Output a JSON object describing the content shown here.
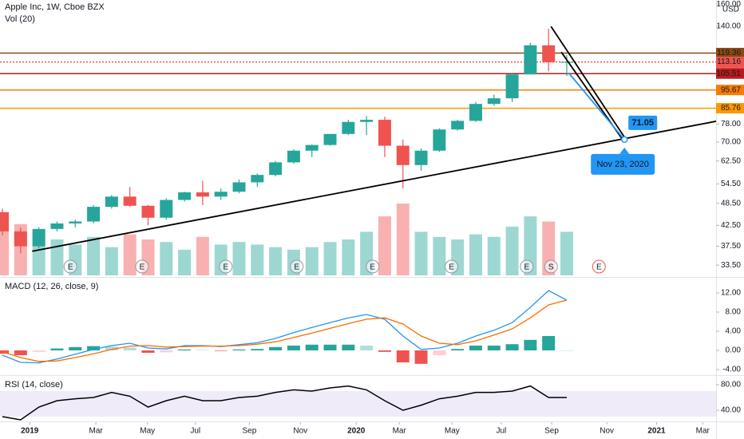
{
  "chart_data": [
    {
      "type": "candlestick",
      "title": "Apple Inc, 1W, Cboe BZX",
      "subtitle": "Vol (20)",
      "currency": "USD",
      "log_scale": true,
      "grid": false,
      "xlim": [
        -0.4,
        117.6
      ],
      "x": [
        0,
        3,
        6,
        9,
        12,
        15,
        18,
        21,
        24,
        27,
        30,
        33,
        36,
        39,
        42,
        45,
        48,
        51,
        54,
        57,
        60,
        63,
        66,
        69,
        72,
        75,
        78,
        81,
        84,
        87,
        90,
        93
      ],
      "open": [
        46,
        41,
        37.5,
        41.6,
        43,
        43.5,
        47.5,
        50.5,
        47.8,
        44.5,
        49.5,
        51.8,
        50.5,
        52,
        55,
        57.5,
        62,
        66.5,
        68.8,
        73.5,
        79,
        80,
        68.5,
        61,
        66.5,
        75.5,
        79.5,
        88,
        91,
        105,
        125,
        113
      ],
      "high": [
        47,
        42,
        42,
        43.5,
        44,
        48,
        51,
        53.5,
        48,
        50,
        52,
        55.5,
        53,
        56,
        58,
        62.5,
        67,
        69,
        73.5,
        80,
        81.9,
        81.5,
        71,
        67.5,
        76,
        80,
        89,
        93,
        106,
        127,
        138,
        118
      ],
      "low": [
        40,
        36,
        37,
        41,
        42,
        43,
        47,
        47.5,
        42.5,
        44,
        49,
        48,
        49.5,
        51.5,
        53.5,
        57,
        61.5,
        64,
        68.5,
        73,
        73,
        64,
        53,
        59,
        66,
        75,
        79,
        87,
        89,
        105,
        107,
        104
      ],
      "close": [
        41,
        37.5,
        41.6,
        43,
        43.5,
        47.5,
        50.5,
        47.8,
        44.5,
        49.5,
        51.8,
        50.5,
        52,
        55,
        57.5,
        62,
        66.5,
        68.8,
        73.5,
        79,
        80,
        68.5,
        61,
        66.5,
        75.5,
        79.5,
        88,
        91,
        105,
        125,
        113,
        113.16
      ],
      "volume": [
        180,
        200,
        170,
        140,
        120,
        150,
        110,
        160,
        140,
        130,
        100,
        150,
        120,
        130,
        120,
        110,
        100,
        110,
        130,
        140,
        170,
        230,
        280,
        170,
        150,
        140,
        160,
        150,
        190,
        230,
        210,
        170
      ],
      "up_color": "#26a69a",
      "down_color": "#ef5350",
      "ylim": [
        31.5,
        164
      ],
      "yticks": [
        {
          "value": 33.5,
          "label": "33.50"
        },
        {
          "value": 37.5,
          "label": "37.50"
        },
        {
          "value": 42.5,
          "label": "42.50"
        },
        {
          "value": 48.5,
          "label": "48.50"
        },
        {
          "value": 54.5,
          "label": "54.50"
        },
        {
          "value": 62.5,
          "label": "62.50"
        },
        {
          "value": 70,
          "label": "70.00"
        },
        {
          "value": 78,
          "label": "78.00"
        },
        {
          "value": 140,
          "label": "140.00"
        },
        {
          "value": 160,
          "label": "160.00"
        }
      ],
      "levels": [
        {
          "value": 119.36,
          "color": "#8a4a12"
        },
        {
          "value": 113.16,
          "color": "#ef5350"
        },
        {
          "value": 105.51,
          "color": "#b71c1c"
        },
        {
          "value": 95.67,
          "color": "#f57c00"
        },
        {
          "value": 85.76,
          "color": "#ff9800"
        }
      ],
      "countdown": "2d 20h",
      "drawings": [
        {
          "x": [
            4.9,
            117.6
          ],
          "y": [
            36.4,
            79.3
          ],
          "color": "#000000"
        },
        {
          "x": [
            90.4,
            102.5
          ],
          "y": [
            140,
            72.1
          ],
          "color": "#000000"
        },
        {
          "x": [
            92.1,
            102.2
          ],
          "y": [
            120,
            71.05
          ],
          "color": "#000000"
        },
        {
          "x": [
            93.3,
            102.5
          ],
          "y": [
            106,
            71.05
          ],
          "color": "#2196f3"
        }
      ],
      "projection": {
        "x": 102.5,
        "y": 71.05,
        "date": "Nov 23, 2020",
        "color": "#2196f3"
      },
      "events": [
        {
          "x": 11.2,
          "label": "E",
          "color": "#9598a1"
        },
        {
          "x": 23,
          "label": "E",
          "color": "#9598a1"
        },
        {
          "x": 36.8,
          "label": "E",
          "color": "#9598a1"
        },
        {
          "x": 48.5,
          "label": "E",
          "color": "#9598a1"
        },
        {
          "x": 61,
          "label": "E",
          "color": "#9598a1"
        },
        {
          "x": 74,
          "label": "E",
          "color": "#9598a1"
        },
        {
          "x": 86.4,
          "label": "E",
          "color": "#9598a1"
        },
        {
          "x": 90.4,
          "label": "S",
          "color": "#9598a1"
        },
        {
          "x": 98.3,
          "label": "E",
          "color": "#ef5350"
        }
      ]
    },
    {
      "type": "macd",
      "title": "MACD (12, 26, close, 9)",
      "xlim": [
        -0.4,
        117.6
      ],
      "x": [
        0,
        3,
        6,
        9,
        12,
        15,
        18,
        21,
        24,
        27,
        30,
        33,
        36,
        39,
        42,
        45,
        48,
        51,
        54,
        57,
        60,
        63,
        66,
        69,
        72,
        75,
        78,
        81,
        84,
        87,
        90,
        93
      ],
      "ylim": [
        -4.83,
        14.83
      ],
      "yticks": [
        {
          "value": -4,
          "label": "-4.00"
        },
        {
          "value": 0,
          "label": "0.00"
        },
        {
          "value": 4,
          "label": "4.00"
        },
        {
          "value": 8,
          "label": "8.00"
        },
        {
          "value": 12,
          "label": "12.00"
        }
      ],
      "series": [
        {
          "name": "MACD",
          "color": "#2196f3",
          "values": [
            -1.0,
            -2.5,
            -2.6,
            -1.8,
            -0.8,
            0.2,
            1.0,
            1.5,
            0.5,
            0.3,
            1.0,
            1.0,
            0.8,
            1.2,
            1.6,
            2.5,
            3.7,
            4.8,
            5.8,
            6.8,
            7.5,
            6.5,
            3.0,
            0.2,
            0.5,
            1.5,
            3.0,
            4.2,
            5.8,
            9.0,
            12.5,
            10.5
          ]
        },
        {
          "name": "Signal",
          "color": "#ff6d00",
          "values": [
            -0.3,
            -1.5,
            -2.3,
            -2.2,
            -1.5,
            -0.7,
            0.2,
            0.9,
            1.0,
            0.7,
            0.8,
            0.9,
            0.9,
            1.0,
            1.3,
            1.8,
            2.7,
            3.6,
            4.6,
            5.6,
            6.5,
            6.8,
            5.5,
            3.0,
            1.5,
            1.2,
            2.0,
            3.2,
            4.5,
            6.8,
            9.5,
            10.5
          ]
        }
      ],
      "histogram": [
        -0.7,
        -1.0,
        -0.3,
        0.4,
        0.7,
        0.9,
        0.8,
        0.6,
        -0.5,
        -0.4,
        0.2,
        0.1,
        -0.1,
        0.2,
        0.3,
        0.7,
        1.0,
        1.2,
        1.2,
        1.2,
        1.0,
        -0.3,
        -2.5,
        -2.8,
        -1.0,
        0.3,
        1.0,
        1.0,
        1.3,
        2.2,
        3.0,
        0.0
      ],
      "histogram_colors": [
        "#26a69a",
        "#b2dfdb",
        "#ef5350",
        "#ffcdd2"
      ]
    },
    {
      "type": "rsi",
      "title": "RSI (14, close)",
      "xlim": [
        -0.4,
        117.6
      ],
      "x": [
        0,
        3,
        6,
        9,
        12,
        15,
        18,
        21,
        24,
        27,
        30,
        33,
        36,
        39,
        42,
        45,
        48,
        51,
        54,
        57,
        60,
        63,
        66,
        69,
        72,
        75,
        78,
        81,
        84,
        87,
        90,
        93
      ],
      "ylim": [
        23.75,
        91.25
      ],
      "yticks": [
        {
          "value": 40,
          "label": "40.00"
        },
        {
          "value": 80,
          "label": "80.00"
        }
      ],
      "band": [
        30,
        70
      ],
      "band_color": "#7e57c2",
      "color": "#000000",
      "values": [
        30,
        25,
        45,
        55,
        58,
        60,
        68,
        62,
        45,
        55,
        62,
        55,
        55,
        60,
        62,
        68,
        72,
        70,
        75,
        78,
        72,
        55,
        40,
        48,
        58,
        62,
        68,
        68,
        70,
        78,
        60,
        60
      ],
      "xticks": [
        {
          "value": 4.5,
          "label": "2019"
        },
        {
          "value": 15.4,
          "label": "Mar"
        },
        {
          "value": 23.9,
          "label": "May"
        },
        {
          "value": 31.8,
          "label": "Jul"
        },
        {
          "value": 40.7,
          "label": "Sep"
        },
        {
          "value": 49.1,
          "label": "Nov"
        },
        {
          "value": 58.3,
          "label": "2020"
        },
        {
          "value": 65.4,
          "label": "Mar"
        },
        {
          "value": 74.1,
          "label": "May"
        },
        {
          "value": 82.2,
          "label": "Jul"
        },
        {
          "value": 90.5,
          "label": "Sep"
        },
        {
          "value": 99.6,
          "label": "Nov"
        },
        {
          "value": 107.8,
          "label": "2021"
        },
        {
          "value": 115.4,
          "label": "Mar"
        }
      ]
    }
  ]
}
